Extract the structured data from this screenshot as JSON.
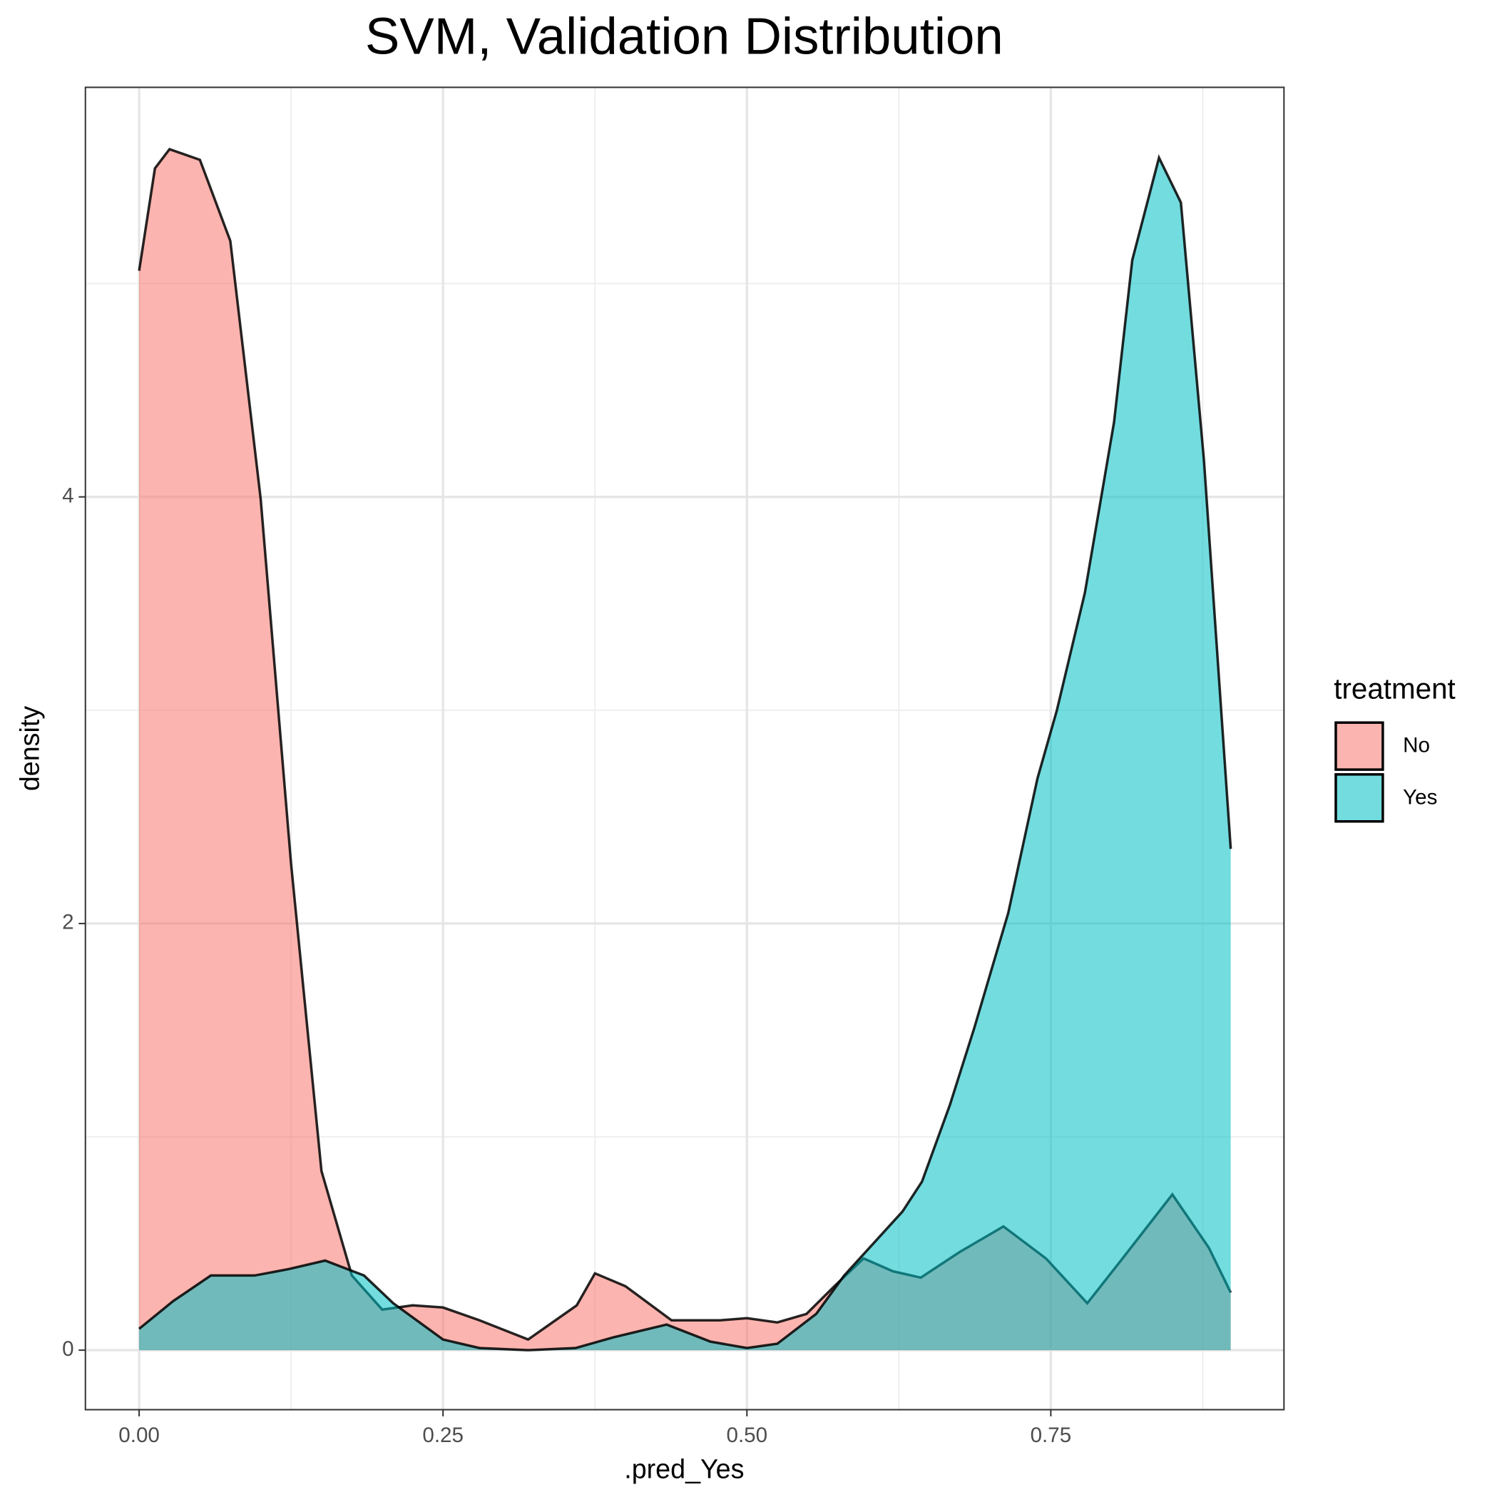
{
  "chart_data": {
    "type": "density",
    "title": "SVM, Validation Distribution",
    "x_label": ".pred_Yes",
    "y_label": "density",
    "legend_title": "treatment",
    "legend_position": "right",
    "grid": true,
    "xlim": [
      -0.0442,
      0.9418
    ],
    "ylim": [
      -0.279,
      5.92
    ],
    "xticks": [
      {
        "value": 0,
        "label": "0.00"
      },
      0.25,
      {
        "value": 0.5,
        "label": "0.50"
      },
      0.75
    ],
    "yticks": [
      0,
      2,
      4
    ],
    "xminor": [
      0.125,
      0.375,
      0.625,
      0.875
    ],
    "yminor": [
      1,
      3,
      5
    ],
    "series": [
      {
        "name": "No",
        "color": "#F8766D",
        "x": [
          0,
          0.013,
          0.025,
          0.05,
          0.075,
          0.1,
          0.125,
          0.15,
          0.175,
          0.2,
          0.225,
          0.25,
          0.28,
          0.32,
          0.36,
          0.375,
          0.4,
          0.438,
          0.478,
          0.5,
          0.525,
          0.549,
          0.572,
          0.596,
          0.62,
          0.643,
          0.675,
          0.711,
          0.746,
          0.78,
          0.809,
          0.85,
          0.88,
          0.898
        ],
        "values": [
          5.06,
          5.54,
          5.63,
          5.58,
          5.2,
          3.99,
          2.28,
          0.84,
          0.35,
          0.19,
          0.21,
          0.2,
          0.14,
          0.05,
          0.21,
          0.36,
          0.3,
          0.14,
          0.14,
          0.15,
          0.13,
          0.17,
          0.3,
          0.43,
          0.37,
          0.34,
          0.46,
          0.58,
          0.43,
          0.22,
          0.43,
          0.73,
          0.48,
          0.27
        ]
      },
      {
        "name": "Yes",
        "color": "#00BFC4",
        "x": [
          0,
          0.028,
          0.059,
          0.095,
          0.123,
          0.153,
          0.185,
          0.209,
          0.25,
          0.28,
          0.32,
          0.359,
          0.39,
          0.434,
          0.47,
          0.5,
          0.525,
          0.557,
          0.58,
          0.604,
          0.628,
          0.644,
          0.667,
          0.687,
          0.715,
          0.739,
          0.755,
          0.778,
          0.802,
          0.817,
          0.839,
          0.857,
          0.876,
          0.898
        ],
        "values": [
          0.1,
          0.23,
          0.35,
          0.35,
          0.38,
          0.42,
          0.35,
          0.22,
          0.05,
          0.01,
          0,
          0.01,
          0.06,
          0.12,
          0.04,
          0.01,
          0.03,
          0.17,
          0.35,
          0.5,
          0.65,
          0.79,
          1.15,
          1.51,
          2.05,
          2.68,
          3.0,
          3.55,
          4.35,
          5.11,
          5.59,
          5.38,
          4.17,
          2.35
        ]
      }
    ]
  }
}
